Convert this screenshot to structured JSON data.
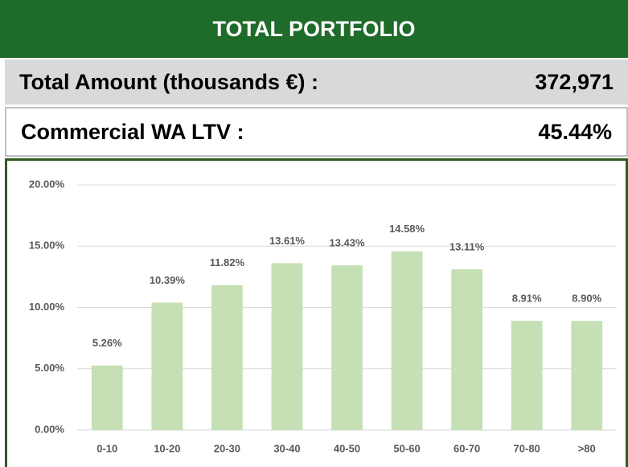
{
  "header": {
    "title": "TOTAL PORTFOLIO"
  },
  "summary": [
    {
      "label": "Total Amount (thousands €) :",
      "value": "372,971"
    },
    {
      "label": "Commercial WA LTV :",
      "value": "45.44%"
    }
  ],
  "chart_data": {
    "type": "bar",
    "categories": [
      "0-10",
      "10-20",
      "20-30",
      "30-40",
      "40-50",
      "50-60",
      "60-70",
      "70-80",
      ">80"
    ],
    "values": [
      5.26,
      10.39,
      11.82,
      13.61,
      13.43,
      14.58,
      13.11,
      8.91,
      8.9
    ],
    "value_labels": [
      "5.26%",
      "10.39%",
      "11.82%",
      "13.61%",
      "13.43%",
      "14.58%",
      "13.11%",
      "8.91%",
      "8.90%"
    ],
    "color": "#c5e0b4",
    "ylim": [
      0,
      20
    ],
    "yticks": [
      {
        "value": 0,
        "label": "0.00%"
      },
      {
        "value": 5,
        "label": "5.00%"
      },
      {
        "value": 10,
        "label": "10.00%"
      },
      {
        "value": 15,
        "label": "15.00%"
      },
      {
        "value": 20,
        "label": "20.00%"
      }
    ],
    "grid": true
  }
}
